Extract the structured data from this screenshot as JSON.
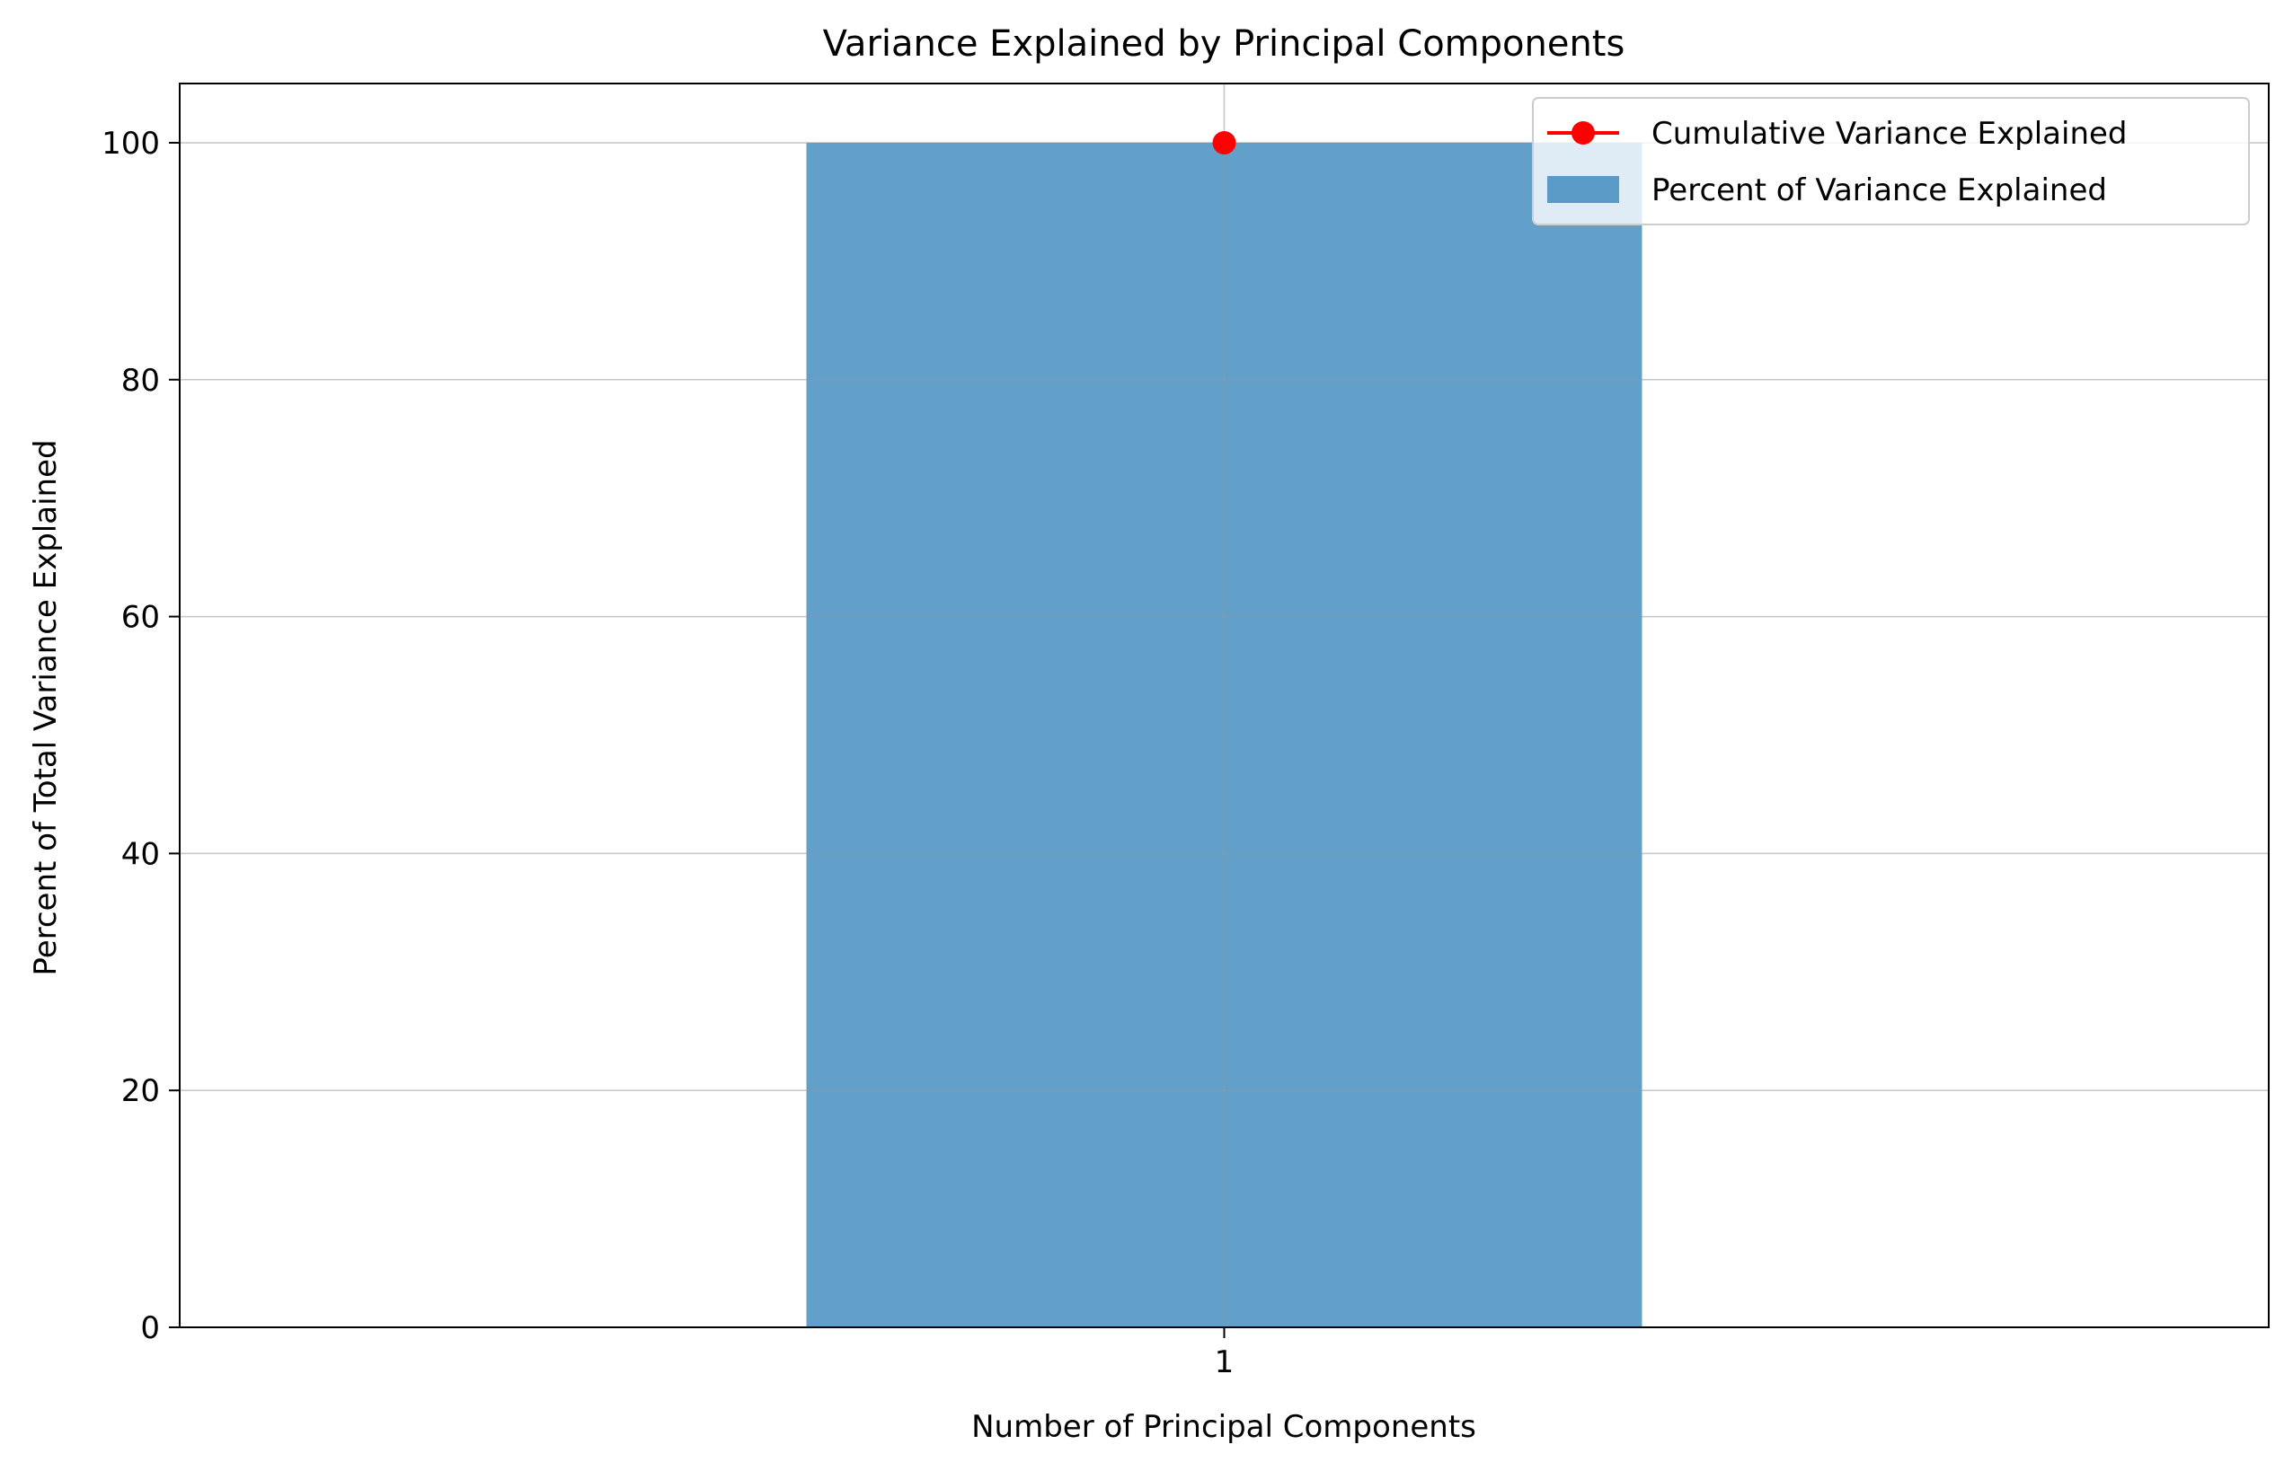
{
  "chart_data": {
    "type": "bar",
    "title": "Variance Explained by Principal Components",
    "xlabel": "Number of Principal Components",
    "ylabel": "Percent of Total Variance Explained",
    "categories": [
      "1"
    ],
    "x": [
      1
    ],
    "series": [
      {
        "name": "Percent of Variance Explained",
        "kind": "bar",
        "values": [
          100
        ],
        "color": "#1f77b4",
        "alpha": 0.7
      },
      {
        "name": "Cumulative Variance Explained",
        "kind": "line",
        "marker": "circle",
        "values": [
          100
        ],
        "color": "#ff0000"
      }
    ],
    "xlim": [
      0,
      2
    ],
    "ylim": [
      0,
      105
    ],
    "yticks": [
      "0",
      "20",
      "40",
      "60",
      "80",
      "100"
    ],
    "xticks": [
      "1"
    ],
    "grid": true,
    "legend_position": "top-right"
  }
}
